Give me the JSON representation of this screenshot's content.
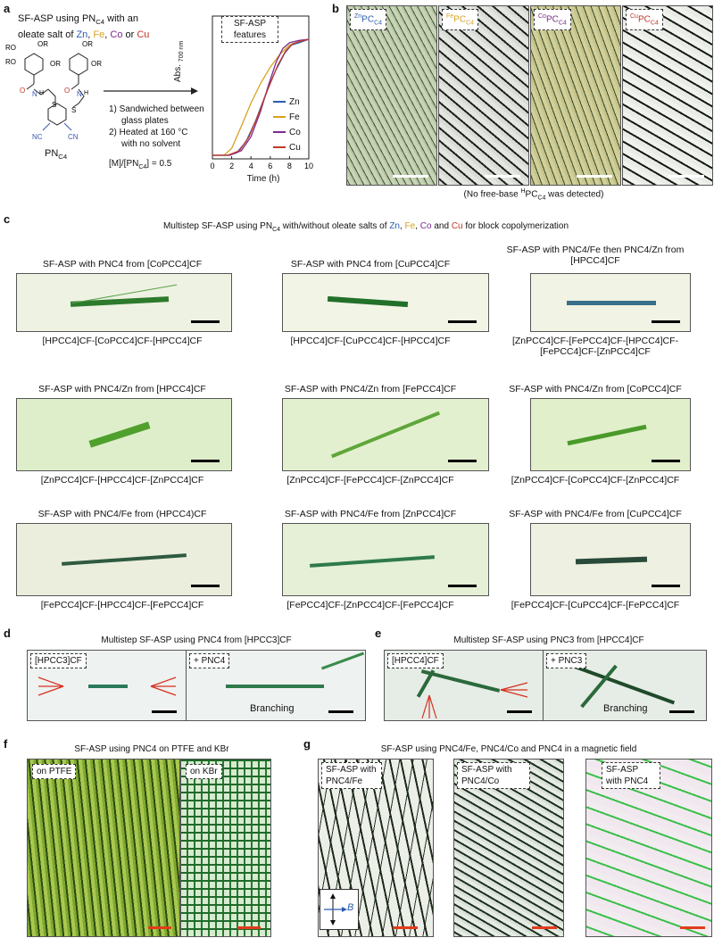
{
  "panel_a": {
    "label": "a",
    "title_line1": "SF-ASP using PN",
    "title_sub": "C4",
    "title_line1_end": " with an",
    "title_line2_prefix": "oleate salt of ",
    "metals": [
      "Zn",
      "Fe",
      "Co",
      "Cu"
    ],
    "sep1": ", ",
    "sep2": ", ",
    "sep3": " or ",
    "ro_labels": [
      "RO",
      "RO",
      "OR",
      "OR",
      "OR",
      "OR"
    ],
    "mol_atoms": {
      "o1": "O",
      "o2": "O",
      "n1": "N",
      "n2": "N",
      "h1": "H",
      "h2": "H",
      "s1": "S",
      "s2": "S",
      "nc1": "NC",
      "cn2": "CN"
    },
    "molecule_label": "PN",
    "molecule_sub": "C4",
    "step1": "1)  Sandwiched between",
    "step1b": "glass plates",
    "step2": "2)  Heated at 160 °C",
    "step2b": "with no solvent",
    "ratio_prefix": "[M]/[PN",
    "ratio_sub": "C4",
    "ratio_suffix": "] = 0.5",
    "features_box": "SF-ASP\nfeatures"
  },
  "chart_data": {
    "type": "line",
    "xlabel": "Time (h)",
    "ylabel": "Abs.",
    "ylabel_sub": "700 nm",
    "xlim": [
      0,
      10
    ],
    "xticks": [
      "0",
      "2",
      "4",
      "6",
      "8",
      "10"
    ],
    "series": [
      {
        "name": "Zn",
        "color": "#2a5db0",
        "x": [
          0,
          1.5,
          2.5,
          3.5,
          4.5,
          5.5,
          6.5,
          7.5,
          8.2,
          9,
          10
        ],
        "y": [
          0,
          0,
          0.02,
          0.12,
          0.3,
          0.52,
          0.72,
          0.88,
          0.95,
          0.97,
          1.0
        ]
      },
      {
        "name": "Fe",
        "color": "#d9a020",
        "x": [
          0,
          1.2,
          2,
          3,
          4,
          5,
          6,
          7,
          8,
          9,
          10
        ],
        "y": [
          0,
          0,
          0.06,
          0.25,
          0.45,
          0.62,
          0.76,
          0.87,
          0.95,
          0.98,
          1.0
        ]
      },
      {
        "name": "Co",
        "color": "#7a2a8f",
        "x": [
          0,
          1.8,
          3,
          4,
          5,
          5.8,
          6.6,
          7.3,
          8,
          9,
          10
        ],
        "y": [
          0,
          0,
          0.04,
          0.16,
          0.38,
          0.6,
          0.8,
          0.92,
          0.97,
          0.99,
          1.0
        ]
      },
      {
        "name": "Cu",
        "color": "#c0392b",
        "x": [
          0,
          1.6,
          2.8,
          3.8,
          4.8,
          5.8,
          6.8,
          7.6,
          8.3,
          9,
          10
        ],
        "y": [
          0,
          0,
          0.04,
          0.16,
          0.36,
          0.58,
          0.78,
          0.9,
          0.96,
          0.98,
          1.0
        ]
      }
    ]
  },
  "panel_b": {
    "label": "b",
    "tags": [
      {
        "sup": "Zn",
        "main": "PC",
        "sub": "C4",
        "cls": "zn"
      },
      {
        "sup": "Fe",
        "main": "PC",
        "sub": "C4",
        "cls": "fe"
      },
      {
        "sup": "Co",
        "main": "PC",
        "sub": "C4",
        "cls": "co"
      },
      {
        "sup": "Cu",
        "main": "PC",
        "sub": "C4",
        "cls": "cu"
      }
    ],
    "caption_a": "(No free-base ",
    "caption_sup": "H",
    "caption_b": "PC",
    "caption_sub": "C4",
    "caption_c": " was detected)"
  },
  "panel_c": {
    "label": "c",
    "title_a": "Multistep SF-ASP using PN",
    "title_sub": "C4",
    "title_b": " with/without oleate salts of ",
    "title_c": " for block copolymerization",
    "cells": [
      {
        "title": "SF-ASP with PNC4 from [CoPCC4]CF",
        "caption": "[HPCC4]CF-[CoPCC4]CF-[HPCC4]CF"
      },
      {
        "title": "SF-ASP with PNC4 from [CuPCC4]CF",
        "caption": "[HPCC4]CF-[CuPCC4]CF-[HPCC4]CF"
      },
      {
        "title": "SF-ASP with PNC4/Fe then PNC4/Zn from [HPCC4]CF",
        "caption": "[ZnPCC4]CF-[FePCC4]CF-[HPCC4]CF-[FePCC4]CF-[ZnPCC4]CF"
      },
      {
        "title": "SF-ASP with PNC4/Zn from [HPCC4]CF",
        "caption": "[ZnPCC4]CF-[HPCC4]CF-[ZnPCC4]CF"
      },
      {
        "title": "SF-ASP with PNC4/Zn from [FePCC4]CF",
        "caption": "[ZnPCC4]CF-[FePCC4]CF-[ZnPCC4]CF"
      },
      {
        "title": "SF-ASP with PNC4/Zn from [CoPCC4]CF",
        "caption": "[ZnPCC4]CF-[CoPCC4]CF-[ZnPCC4]CF"
      },
      {
        "title": "SF-ASP with PNC4/Fe from (HPCC4)CF",
        "caption": "[FePCC4]CF-[HPCC4]CF-[FePCC4]CF"
      },
      {
        "title": "SF-ASP with PNC4/Fe from [ZnPCC4]CF",
        "caption": "[FePCC4]CF-[ZnPCC4]CF-[FePCC4]CF"
      },
      {
        "title": "SF-ASP with PNC4/Fe from [CuPCC4]CF",
        "caption": "[FePCC4]CF-[CuPCC4]CF-[FePCC4]CF"
      }
    ]
  },
  "panel_d": {
    "label": "d",
    "title": "Multistep SF-ASP using PNC4 from [HPCC3]CF",
    "tag1": "[HPCC3]CF",
    "tag2": "+ PNC4",
    "branching": "Branching"
  },
  "panel_e": {
    "label": "e",
    "title": "Multistep SF-ASP using PNC3 from [HPCC4]CF",
    "tag1": "[HPCC4]CF",
    "tag2": "+ PNC3",
    "branching": "Branching"
  },
  "panel_f": {
    "label": "f",
    "title": "SF-ASP using PNC4 on PTFE and KBr",
    "tag1": "on PTFE",
    "tag2": "on KBr"
  },
  "panel_g": {
    "label": "g",
    "title": "SF-ASP using PNC4/Fe, PNC4/Co and PNC4 in a magnetic field",
    "tag1": "SF-ASP with PNC4/Fe",
    "tag2": "SF-ASP with PNC4/Co",
    "tag3": "SF-ASP with PNC4",
    "field_label": "B"
  }
}
